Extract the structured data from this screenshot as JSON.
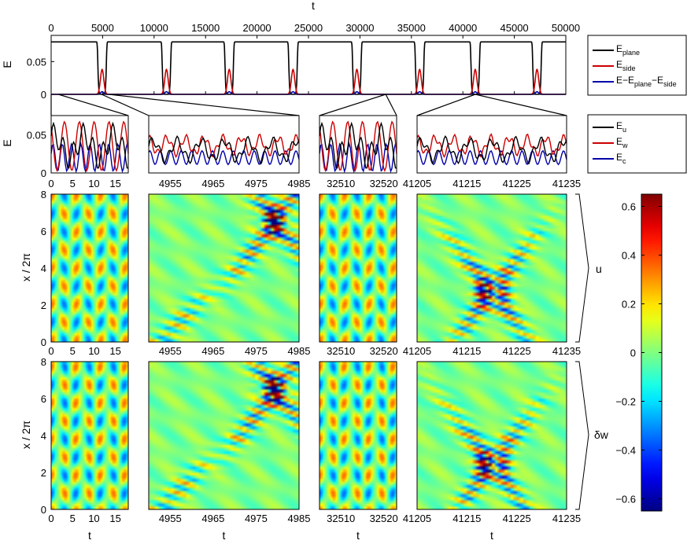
{
  "chart_data": [
    {
      "id": "top",
      "type": "line",
      "xlabel": "t",
      "ylabel": "E",
      "xlim": [
        0,
        50000
      ],
      "ylim": [
        0,
        0.09
      ],
      "xticks": [
        "0",
        "5000",
        "10000",
        "15000",
        "20000",
        "25000",
        "30000",
        "35000",
        "40000",
        "45000",
        "50000"
      ],
      "yticks": [
        "0",
        "0.05"
      ],
      "burst_times": [
        4950,
        11200,
        17300,
        23500,
        29700,
        35800,
        41200,
        47200
      ],
      "plateau": 0.08,
      "side_peak": 0.038,
      "residual_peak": 0.004,
      "legend": [
        {
          "base": "E",
          "sub": "plane",
          "color": "#000000"
        },
        {
          "base": "E",
          "sub": "side",
          "color": "#cc0000"
        },
        {
          "base": "E−E",
          "sub": "plane",
          "tail": "−E",
          "sub2": "side",
          "color": "#0000aa"
        }
      ]
    },
    {
      "id": "zooms",
      "type": "line",
      "ylabel": "E",
      "ylim": [
        0,
        0.075
      ],
      "yticks": [
        "0",
        "0.05"
      ],
      "zoom_windows": [
        {
          "t0": 0,
          "t1": 18,
          "center": 0
        },
        {
          "t0": 4950,
          "t1": 4985,
          "center": 4950
        },
        {
          "t0": 32505,
          "t1": 32523,
          "center": 32505
        },
        {
          "t0": 41205,
          "t1": 41235,
          "center": 41205
        }
      ],
      "legend": [
        {
          "base": "E",
          "sub": "u",
          "color": "#000000"
        },
        {
          "base": "E",
          "sub": "w",
          "color": "#cc0000"
        },
        {
          "base": "E",
          "sub": "c",
          "color": "#0000aa"
        }
      ]
    },
    {
      "id": "heatmaps",
      "type": "heatmap",
      "xlabel": "t",
      "ylabel": "x / 2π",
      "ylim": [
        0,
        8
      ],
      "yticks": [
        "0",
        "2",
        "4",
        "6",
        "8"
      ],
      "rows": [
        {
          "label": "u"
        },
        {
          "label": "δw"
        }
      ],
      "columns": [
        {
          "xlim": [
            0,
            18
          ],
          "xticks": [
            "0",
            "5",
            "10",
            "15"
          ]
        },
        {
          "xlim": [
            4950,
            4985
          ],
          "xticks": [
            "4955",
            "4965",
            "4975",
            "4985"
          ]
        },
        {
          "xlim": [
            32505,
            32523
          ],
          "xticks": [
            "32510",
            "32520"
          ]
        },
        {
          "xlim": [
            41205,
            41235
          ],
          "xticks": [
            "41205",
            "41215",
            "41225",
            "41235"
          ]
        }
      ],
      "colorbar": {
        "range": [
          -0.65,
          0.65
        ],
        "ticks": [
          "0.6",
          "0.4",
          "0.2",
          "0",
          "−0.2",
          "−0.4",
          "−0.6"
        ],
        "tick_values": [
          0.6,
          0.4,
          0.2,
          0,
          -0.2,
          -0.4,
          -0.6
        ],
        "colormap": "jet"
      }
    }
  ]
}
